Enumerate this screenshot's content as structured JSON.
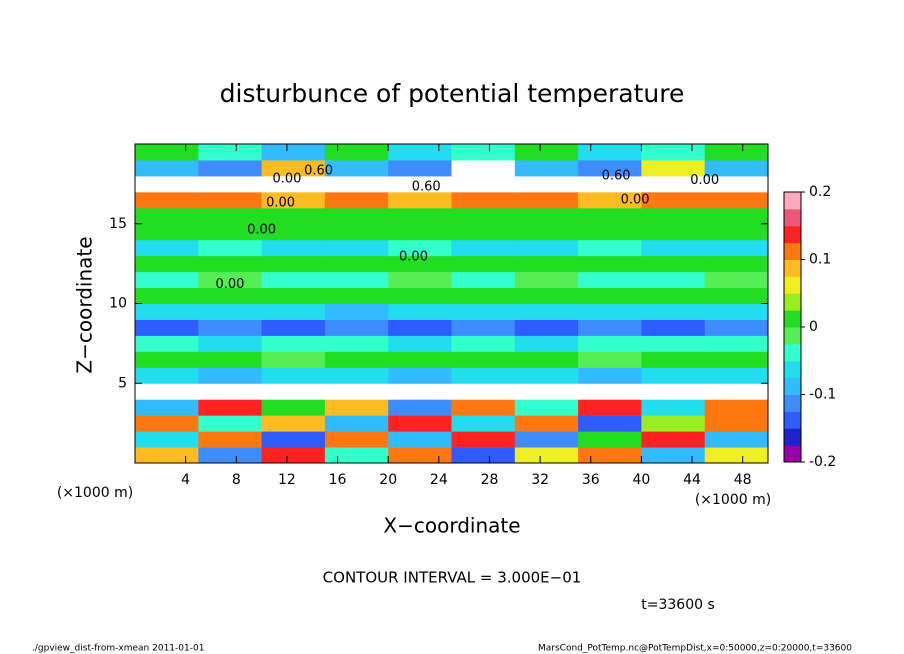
{
  "chart_data": {
    "type": "heatmap",
    "title": "disturbunce of potential temperature",
    "x_label": "X−coordinate",
    "y_label": "Z−coordinate",
    "x_unit": "(×1000 m)",
    "y_unit": "(×1000 m)",
    "xlim": [
      0,
      50
    ],
    "ylim": [
      0,
      20
    ],
    "xticks": [
      4,
      8,
      12,
      16,
      20,
      24,
      28,
      32,
      36,
      40,
      44,
      48
    ],
    "yticks": [
      5,
      10,
      15
    ],
    "field": [
      [
        0.08,
        -0.12,
        0.15,
        -0.05,
        0.1,
        -0.15,
        0.05,
        0.12,
        -0.1,
        0.06
      ],
      [
        -0.06,
        0.1,
        -0.14,
        0.12,
        -0.08,
        0.14,
        -0.12,
        0.02,
        0.13,
        -0.09
      ],
      [
        0.12,
        -0.04,
        0.08,
        -0.1,
        0.15,
        -0.06,
        0.11,
        -0.13,
        0.04,
        0.1
      ],
      [
        -0.1,
        0.14,
        0.02,
        0.09,
        -0.12,
        0.1,
        -0.04,
        0.15,
        -0.07,
        0.12
      ],
      [
        0.25,
        0.25,
        0.22,
        0.25,
        0.25,
        0.25,
        0.25,
        0.22,
        0.25,
        0.25
      ],
      [
        -0.07,
        -0.08,
        -0.06,
        -0.07,
        -0.08,
        -0.07,
        -0.06,
        -0.08,
        -0.07,
        -0.07
      ],
      [
        0.0,
        0.01,
        -0.01,
        0.0,
        0.0,
        0.01,
        0.0,
        -0.01,
        0.0,
        0.01
      ],
      [
        -0.05,
        -0.06,
        -0.05,
        -0.04,
        -0.06,
        -0.05,
        -0.06,
        -0.05,
        -0.04,
        -0.05
      ],
      [
        -0.13,
        -0.12,
        -0.13,
        -0.12,
        -0.13,
        -0.12,
        -0.13,
        -0.12,
        -0.13,
        -0.12
      ],
      [
        -0.07,
        -0.06,
        -0.07,
        -0.08,
        -0.07,
        -0.06,
        -0.07,
        -0.07,
        -0.06,
        -0.07
      ],
      [
        0.0,
        0.01,
        0.0,
        0.0,
        0.01,
        0.0,
        0.02,
        0.0,
        0.01,
        0.0
      ],
      [
        -0.03,
        -0.02,
        -0.03,
        -0.03,
        -0.02,
        -0.03,
        -0.02,
        -0.03,
        -0.03,
        -0.02
      ],
      [
        0.01,
        0.0,
        0.01,
        0.0,
        0.01,
        0.01,
        0.0,
        0.01,
        0.0,
        0.01
      ],
      [
        -0.06,
        -0.05,
        -0.06,
        -0.06,
        -0.05,
        -0.06,
        -0.06,
        -0.05,
        -0.06,
        -0.06
      ],
      [
        0.01,
        0.0,
        0.01,
        0.01,
        0.0,
        0.01,
        0.0,
        0.01,
        0.01,
        0.0
      ],
      [
        0.02,
        0.01,
        0.02,
        0.01,
        0.02,
        0.01,
        0.02,
        0.01,
        0.02,
        0.01
      ],
      [
        0.1,
        0.12,
        0.08,
        0.11,
        0.09,
        0.12,
        0.1,
        0.08,
        0.11,
        0.1
      ],
      [
        0.25,
        0.25,
        0.25,
        0.22,
        0.25,
        0.25,
        0.25,
        0.25,
        0.22,
        0.25
      ],
      [
        -0.1,
        -0.12,
        0.08,
        -0.1,
        -0.11,
        0.25,
        -0.1,
        -0.12,
        0.06,
        -0.1
      ],
      [
        0.0,
        -0.05,
        -0.08,
        0.02,
        -0.06,
        -0.04,
        0.01,
        -0.07,
        -0.05,
        0.0
      ]
    ],
    "colorbar": {
      "lim": [
        -0.2,
        0.2
      ],
      "ticks": [
        -0.2,
        -0.1,
        0,
        0.1,
        0.2
      ],
      "colors": [
        "#9900aa",
        "#2222cc",
        "#2e5cff",
        "#3f8cff",
        "#33bbff",
        "#22ddee",
        "#33ffcc",
        "#55ee55",
        "#22dd22",
        "#99ee22",
        "#eeee22",
        "#ffbb22",
        "#ff7711",
        "#ff2222",
        "#ee5577",
        "#ffaabb"
      ],
      "over_color": "#ffffff"
    },
    "contour_labels": [
      {
        "text": "0.60",
        "x": 14.5,
        "z": 18.3
      },
      {
        "text": "0.60",
        "x": 23,
        "z": 17.3
      },
      {
        "text": "0.60",
        "x": 38,
        "z": 18
      },
      {
        "text": "0.00",
        "x": 12,
        "z": 17.8
      },
      {
        "text": "0.00",
        "x": 11.5,
        "z": 16.3
      },
      {
        "text": "0.00",
        "x": 10,
        "z": 14.6
      },
      {
        "text": "0.00",
        "x": 22,
        "z": 12.9
      },
      {
        "text": "0.00",
        "x": 7.5,
        "z": 11.2
      },
      {
        "text": "0.00",
        "x": 39.5,
        "z": 16.5
      },
      {
        "text": "0.00",
        "x": 45,
        "z": 17.7
      }
    ],
    "contour_interval": "CONTOUR INTERVAL = 3.000E−01",
    "time_label": "t=33600 s",
    "footer_left": "./gpview_dist-from-xmean   2011-01-01",
    "footer_right": "MarsCond_PotTemp.nc@PotTempDist,x=0:50000,z=0:20000,t=33600"
  }
}
